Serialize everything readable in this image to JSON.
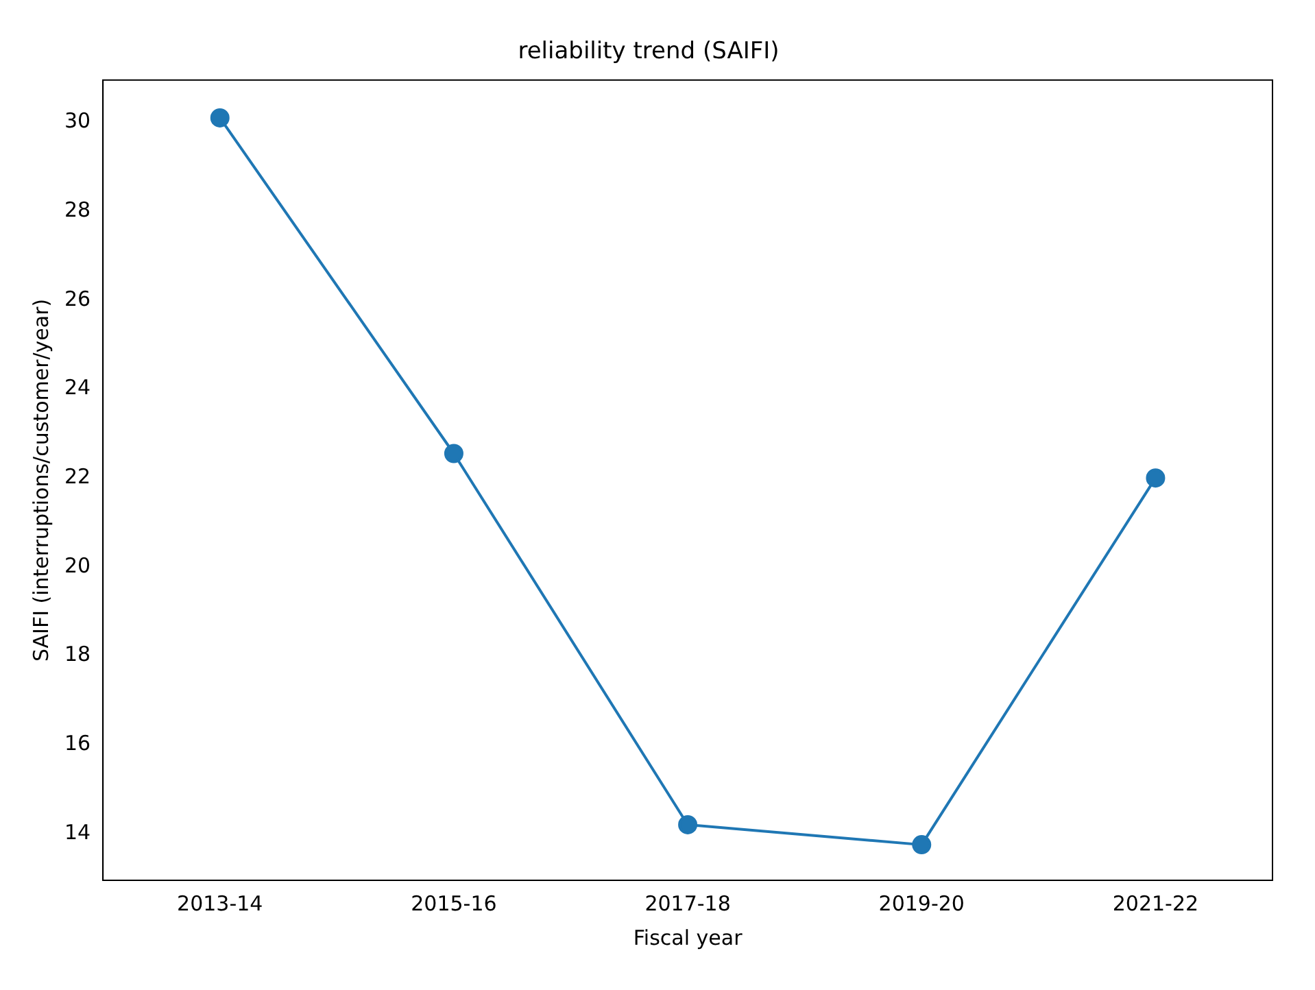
{
  "chart_data": {
    "type": "line",
    "title": "reliability trend (SAIFI)",
    "xlabel": "Fiscal year",
    "ylabel": "SAIFI (interruptions/customer/year)",
    "categories": [
      "2013-14",
      "2015-16",
      "2017-18",
      "2019-20",
      "2021-22"
    ],
    "series": [
      {
        "color": "#1f77b4",
        "values": [
          30.1,
          22.55,
          14.2,
          13.75,
          22.0
        ]
      }
    ],
    "ylim": [
      12.95,
      30.95
    ],
    "yticks": [
      14,
      16,
      18,
      20,
      22,
      24,
      26,
      28,
      30
    ],
    "grid": false,
    "legend": false,
    "marker": "circle",
    "line_style": "solid"
  }
}
